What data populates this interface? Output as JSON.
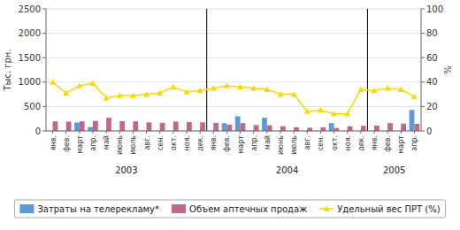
{
  "chart_data": {
    "type": "bar",
    "categories": [
      "янв.",
      "фев.",
      "март",
      "апр.",
      "май",
      "июнь",
      "июль",
      "авг.",
      "сен.",
      "окт.",
      "ноя.",
      "дек.",
      "янв.",
      "фев.",
      "март",
      "апр.",
      "май",
      "июнь",
      "июль",
      "авг.",
      "сен.",
      "окт.",
      "ноя.",
      "дек.",
      "янв.",
      "фев.",
      "март",
      "апр."
    ],
    "series": [
      {
        "name": "Затраты на телерекламу*",
        "type": "bar",
        "color": "#5b9bd5",
        "values": [
          0,
          0,
          170,
          80,
          0,
          0,
          0,
          0,
          0,
          0,
          0,
          0,
          0,
          160,
          300,
          0,
          270,
          0,
          0,
          0,
          0,
          160,
          0,
          0,
          0,
          0,
          0,
          430
        ]
      },
      {
        "name": "Объем аптечных продаж",
        "type": "bar",
        "color": "#c0678c",
        "values": [
          195,
          190,
          195,
          205,
          270,
          200,
          195,
          175,
          165,
          190,
          180,
          175,
          165,
          130,
          160,
          120,
          115,
          95,
          75,
          65,
          75,
          60,
          95,
          105,
          110,
          160,
          150,
          145
        ]
      },
      {
        "name": "Удельный вес ПРТ (%)",
        "type": "line",
        "axis": "y2",
        "color": "#ffd700",
        "marker": "triangle",
        "values": [
          40,
          31,
          37,
          39,
          27,
          29,
          29,
          30,
          31,
          36,
          32,
          33,
          35,
          37,
          36,
          35,
          34,
          30,
          30,
          16,
          17,
          14,
          14,
          34,
          33,
          35,
          34,
          28
        ]
      }
    ],
    "ylabel": "Тыс. грн.",
    "y2label": "%",
    "ylim": [
      0,
      2500
    ],
    "yticks": [
      0,
      500,
      1000,
      1500,
      2000,
      2500
    ],
    "y2lim": [
      0,
      100
    ],
    "y2ticks": [
      0,
      20,
      40,
      60,
      80,
      100
    ],
    "annotations": [
      {
        "text": "2003",
        "x": 5.5
      },
      {
        "text": "2004",
        "x": 17.5
      },
      {
        "text": "2005",
        "x": 25.5
      },
      {
        "type": "vline",
        "x": 11.5
      },
      {
        "type": "vline",
        "x": 23.5
      }
    ],
    "grid": true,
    "legend": "bottom"
  }
}
